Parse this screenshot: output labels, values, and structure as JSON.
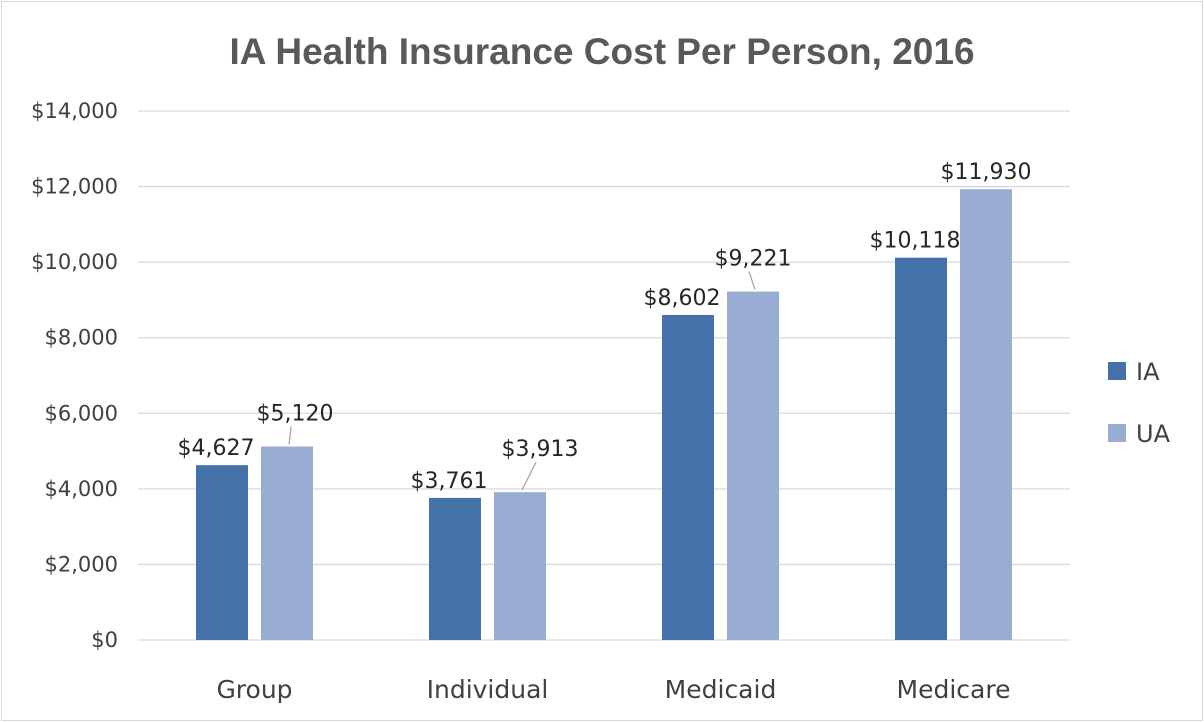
{
  "chart_data": {
    "type": "bar",
    "title": "IA Health Insurance Cost Per Person, 2016",
    "xlabel": "",
    "ylabel": "",
    "categories": [
      "Group",
      "Individual",
      "Medicaid",
      "Medicare"
    ],
    "series": [
      {
        "name": "IA",
        "values": [
          4627,
          3761,
          8602,
          10118
        ],
        "labels": [
          "$4,627",
          "$3,761",
          "$8,602",
          "$10,118"
        ],
        "color": "#4472a8"
      },
      {
        "name": "UA",
        "values": [
          5120,
          3913,
          9221,
          11930
        ],
        "labels": [
          "$5,120",
          "$3,913",
          "$9,221",
          "$11,930"
        ],
        "color": "#98acd4"
      }
    ],
    "ylim": [
      0,
      14000
    ],
    "yticks": [
      0,
      2000,
      4000,
      6000,
      8000,
      10000,
      12000,
      14000
    ],
    "ytick_labels": [
      "$0",
      "$2,000",
      "$4,000",
      "$6,000",
      "$8,000",
      "$10,000",
      "$12,000",
      "$14,000"
    ],
    "grid": true,
    "legend_position": "right",
    "gridline_color": "#d9d9d9",
    "leader_line_color": "#a6a6a6"
  }
}
